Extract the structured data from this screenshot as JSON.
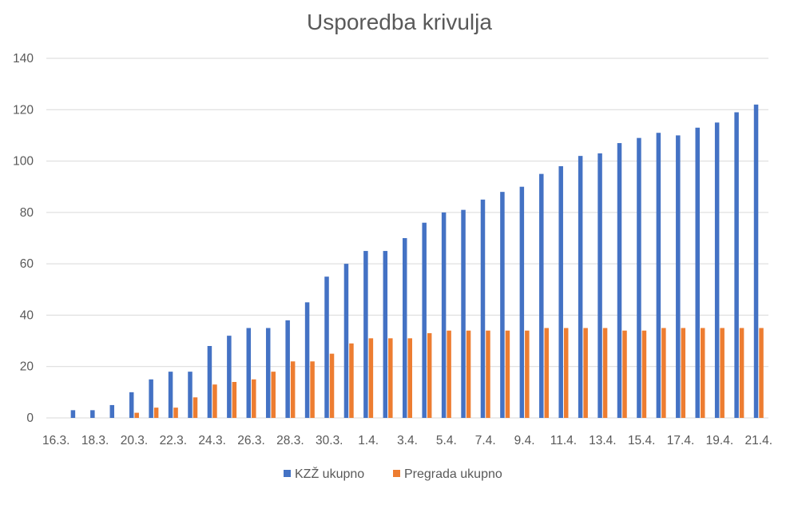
{
  "chart_data": {
    "type": "bar",
    "title": "Usporedba krivulja",
    "xlabel": "",
    "ylabel": "",
    "ylim": [
      0,
      140
    ],
    "yticks": [
      0,
      20,
      40,
      60,
      80,
      100,
      120,
      140
    ],
    "grid": true,
    "legend_position": "bottom",
    "categories": [
      "16.3.",
      "17.3.",
      "18.3.",
      "19.3.",
      "20.3.",
      "21.3.",
      "22.3.",
      "23.3.",
      "24.3.",
      "25.3.",
      "26.3.",
      "27.3.",
      "28.3.",
      "29.3.",
      "30.3.",
      "31.3.",
      "1.4.",
      "2.4.",
      "3.4.",
      "4.4.",
      "5.4.",
      "6.4.",
      "7.4.",
      "8.4.",
      "9.4.",
      "10.4.",
      "11.4.",
      "12.4.",
      "13.4.",
      "14.4.",
      "15.4.",
      "16.4.",
      "17.4.",
      "18.4.",
      "19.4.",
      "20.4.",
      "21.4."
    ],
    "shown_tick_labels": [
      "16.3.",
      "18.3.",
      "20.3.",
      "22.3.",
      "24.3.",
      "26.3.",
      "28.3.",
      "30.3.",
      "1.4.",
      "3.4.",
      "5.4.",
      "7.4.",
      "9.4.",
      "11.4.",
      "13.4.",
      "15.4.",
      "17.4.",
      "19.4.",
      "21.4."
    ],
    "series": [
      {
        "name": "KZŽ ukupno",
        "color": "#4472c4",
        "values": [
          0,
          3,
          3,
          5,
          10,
          15,
          18,
          18,
          28,
          32,
          35,
          35,
          38,
          45,
          55,
          60,
          65,
          65,
          70,
          76,
          80,
          81,
          85,
          88,
          90,
          95,
          98,
          102,
          103,
          107,
          109,
          111,
          110,
          113,
          115,
          119,
          122
        ]
      },
      {
        "name": "Pregrada ukupno",
        "color": "#ed7d31",
        "values": [
          0,
          0,
          0,
          0,
          2,
          4,
          4,
          8,
          13,
          14,
          15,
          18,
          22,
          22,
          25,
          29,
          31,
          31,
          31,
          33,
          34,
          34,
          34,
          34,
          34,
          35,
          35,
          35,
          35,
          34,
          34,
          35,
          35,
          35,
          35,
          35,
          35
        ]
      }
    ]
  }
}
